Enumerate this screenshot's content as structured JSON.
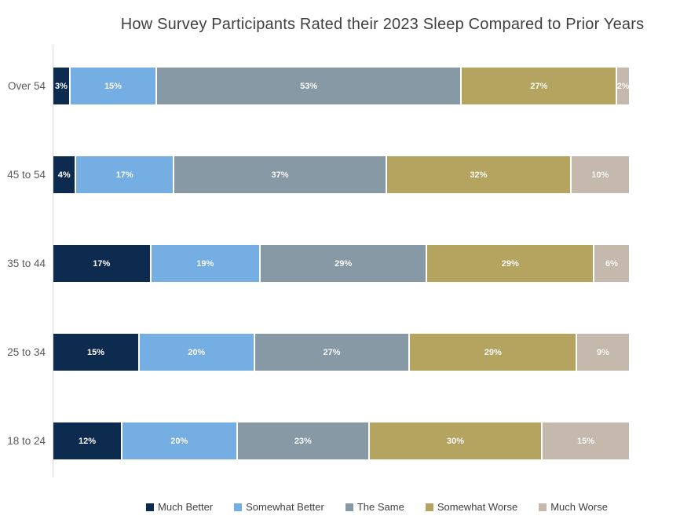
{
  "chart_data": {
    "type": "bar",
    "orientation": "horizontal-stacked",
    "title": "How Survey Participants Rated their 2023 Sleep Compared to Prior Years",
    "categories": [
      "Over 54",
      "45 to 54",
      "35 to 44",
      "25 to 34",
      "18 to 24"
    ],
    "series": [
      {
        "name": "Much Better",
        "color": "#0D2A4F",
        "values": [
          3,
          4,
          17,
          15,
          12
        ]
      },
      {
        "name": "Somewhat Better",
        "color": "#74AEE2",
        "values": [
          15,
          17,
          19,
          20,
          20
        ]
      },
      {
        "name": "The Same",
        "color": "#8699A5",
        "values": [
          53,
          37,
          29,
          27,
          23
        ]
      },
      {
        "name": "Somewhat Worse",
        "color": "#B5A45F",
        "values": [
          27,
          32,
          29,
          29,
          30
        ]
      },
      {
        "name": "Much Worse",
        "color": "#C4B9AC",
        "values": [
          2,
          10,
          6,
          9,
          15
        ]
      }
    ],
    "data_label_format": "{value}%",
    "xlim": [
      0,
      100
    ],
    "grid": false,
    "axis_line_color": "#D9D9D9",
    "legend_position": "bottom"
  }
}
